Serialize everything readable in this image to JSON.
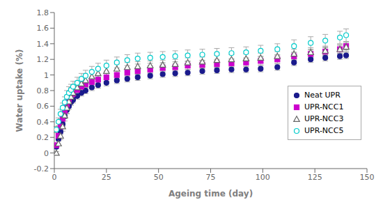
{
  "chart_data": {
    "type": "scatter",
    "xlabel": "Ageing time (day)",
    "ylabel": "Water uptake (%)",
    "xlim": [
      0,
      150
    ],
    "xticks": [
      0,
      25,
      50,
      75,
      100,
      125,
      150
    ],
    "ylim": [
      -0.2,
      1.8
    ],
    "yticks": [
      -0.2,
      0,
      0.2,
      0.4,
      0.6,
      0.8,
      1,
      1.2,
      1.4,
      1.6,
      1.8
    ],
    "grid": false,
    "legend": "right",
    "x": [
      1,
      2,
      3,
      4,
      5,
      6,
      7,
      8,
      9,
      11,
      13,
      15,
      18,
      21,
      25,
      30,
      35,
      40,
      46,
      52,
      58,
      64,
      71,
      78,
      85,
      92,
      99,
      107,
      115,
      123,
      130,
      137,
      140
    ],
    "series": [
      {
        "name": "Neat UPR",
        "color": "#1a1a8c",
        "marker": "circle",
        "values": [
          0.08,
          0.18,
          0.27,
          0.37,
          0.47,
          0.55,
          0.6,
          0.65,
          0.68,
          0.73,
          0.77,
          0.8,
          0.84,
          0.87,
          0.9,
          0.93,
          0.95,
          0.97,
          0.99,
          1.01,
          1.02,
          1.03,
          1.05,
          1.06,
          1.07,
          1.07,
          1.08,
          1.1,
          1.16,
          1.2,
          1.22,
          1.24,
          1.25
        ],
        "yerr": [
          0.02,
          0.02,
          0.03,
          0.03,
          0.03,
          0.04,
          0.04,
          0.04,
          0.04,
          0.04,
          0.04,
          0.04,
          0.04,
          0.04,
          0.04,
          0.04,
          0.04,
          0.04,
          0.04,
          0.04,
          0.04,
          0.04,
          0.04,
          0.04,
          0.04,
          0.04,
          0.04,
          0.04,
          0.04,
          0.04,
          0.04,
          0.04,
          0.04
        ]
      },
      {
        "name": "UPR-NCC1",
        "color": "#cc00cc",
        "marker": "square",
        "values": [
          0.1,
          0.22,
          0.34,
          0.44,
          0.54,
          0.62,
          0.67,
          0.72,
          0.76,
          0.81,
          0.85,
          0.88,
          0.91,
          0.94,
          0.97,
          1.0,
          1.03,
          1.05,
          1.07,
          1.09,
          1.1,
          1.12,
          1.13,
          1.14,
          1.15,
          1.16,
          1.18,
          1.2,
          1.24,
          1.27,
          1.3,
          1.33,
          1.37
        ],
        "yerr": [
          0.02,
          0.03,
          0.04,
          0.04,
          0.05,
          0.05,
          0.05,
          0.05,
          0.05,
          0.05,
          0.05,
          0.05,
          0.05,
          0.05,
          0.05,
          0.05,
          0.05,
          0.05,
          0.05,
          0.05,
          0.05,
          0.05,
          0.05,
          0.05,
          0.05,
          0.05,
          0.05,
          0.05,
          0.05,
          0.05,
          0.05,
          0.05,
          0.05
        ]
      },
      {
        "name": "UPR-NCC3",
        "color": "#666666",
        "marker": "triangle-open",
        "values": [
          0.0,
          0.12,
          0.22,
          0.34,
          0.48,
          0.58,
          0.66,
          0.72,
          0.77,
          0.84,
          0.89,
          0.93,
          0.98,
          1.02,
          1.05,
          1.08,
          1.1,
          1.11,
          1.12,
          1.13,
          1.14,
          1.16,
          1.17,
          1.19,
          1.2,
          1.21,
          1.22,
          1.24,
          1.27,
          1.29,
          1.31,
          1.33,
          1.36
        ],
        "yerr": [
          0.02,
          0.03,
          0.05,
          0.06,
          0.07,
          0.08,
          0.08,
          0.07,
          0.07,
          0.06,
          0.06,
          0.06,
          0.06,
          0.06,
          0.06,
          0.06,
          0.06,
          0.06,
          0.06,
          0.06,
          0.06,
          0.06,
          0.06,
          0.06,
          0.06,
          0.06,
          0.06,
          0.06,
          0.06,
          0.06,
          0.06,
          0.06,
          0.06
        ]
      },
      {
        "name": "UPR-NCC5",
        "color": "#00cccc",
        "marker": "circle-open",
        "values": [
          0.3,
          0.4,
          0.5,
          0.58,
          0.65,
          0.72,
          0.77,
          0.81,
          0.85,
          0.9,
          0.95,
          0.99,
          1.04,
          1.08,
          1.12,
          1.16,
          1.19,
          1.21,
          1.22,
          1.23,
          1.24,
          1.25,
          1.26,
          1.27,
          1.28,
          1.29,
          1.31,
          1.33,
          1.37,
          1.41,
          1.44,
          1.48,
          1.51
        ],
        "yerr": [
          0.04,
          0.05,
          0.06,
          0.06,
          0.07,
          0.08,
          0.08,
          0.07,
          0.07,
          0.07,
          0.07,
          0.07,
          0.07,
          0.07,
          0.07,
          0.07,
          0.07,
          0.07,
          0.07,
          0.07,
          0.07,
          0.07,
          0.07,
          0.07,
          0.07,
          0.07,
          0.07,
          0.07,
          0.08,
          0.08,
          0.08,
          0.08,
          0.08
        ]
      }
    ]
  }
}
